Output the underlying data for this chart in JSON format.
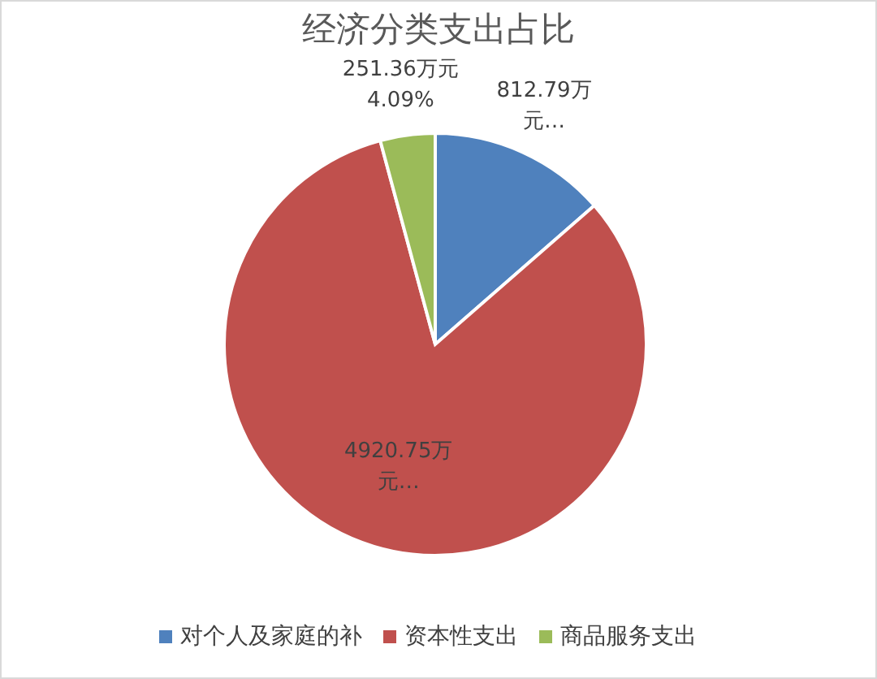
{
  "chart_data": {
    "type": "pie",
    "title": "经济分类支出占比",
    "categories": [
      "对个人及家庭的补",
      "资本性支出",
      "商品服务支出"
    ],
    "values": [
      812.79,
      4920.75,
      251.36
    ],
    "colors": [
      "#4f81bd",
      "#c0504d",
      "#9bbb59"
    ],
    "value_labels": [
      "812.79万元…",
      "4920.75万元…",
      "251.36万元\n4.09%"
    ],
    "legend": "bottom"
  }
}
